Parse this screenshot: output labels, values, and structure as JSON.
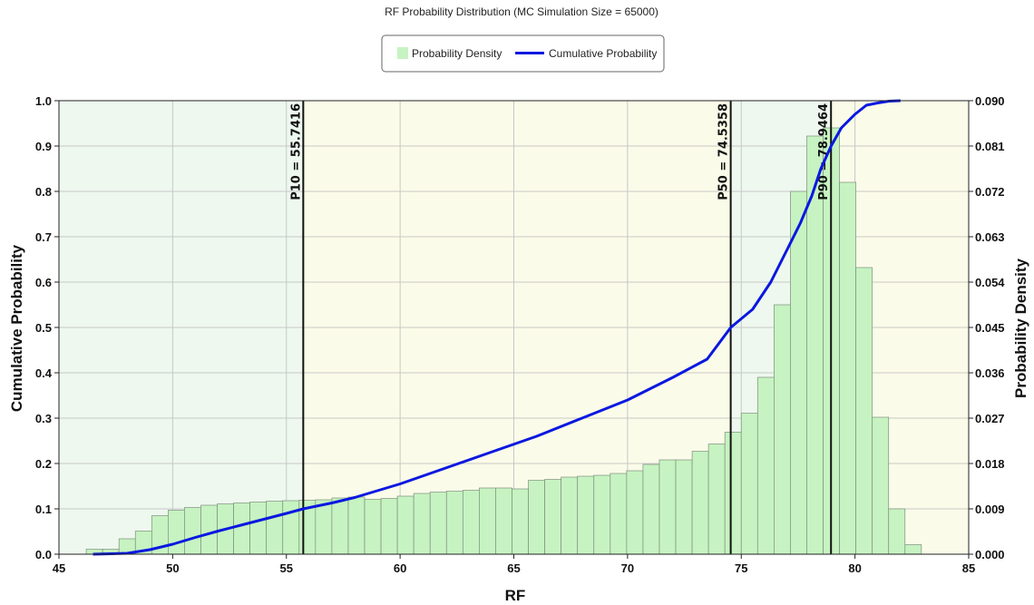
{
  "chart_data": {
    "type": "bar",
    "title": "RF Probability Distribution (MC Simulation Size = 65000)",
    "xlabel": "RF",
    "ylabel_left": "Cumulative Probability",
    "ylabel_right": "Probability Density",
    "xlim": [
      45,
      85
    ],
    "ylim_left": [
      0.0,
      1.0
    ],
    "ylim_right": [
      0.0,
      0.09
    ],
    "x_ticks": [
      "45",
      "50",
      "55",
      "60",
      "65",
      "70",
      "75",
      "80",
      "85"
    ],
    "y_left_ticks": [
      "0.0",
      "0.1",
      "0.2",
      "0.3",
      "0.4",
      "0.5",
      "0.6",
      "0.7",
      "0.8",
      "0.9",
      "1.0"
    ],
    "y_right_ticks": [
      "0.000",
      "0.009",
      "0.018",
      "0.027",
      "0.036",
      "0.045",
      "0.054",
      "0.063",
      "0.072",
      "0.081",
      "0.090"
    ],
    "grid": true,
    "legend": {
      "position": "top-center",
      "items": [
        {
          "label": "Probability Density",
          "color": "#c6f3c1",
          "kind": "bar"
        },
        {
          "label": "Cumulative Probability",
          "color": "#0a18e0",
          "kind": "line"
        }
      ]
    },
    "regions": [
      {
        "from": 45,
        "to": 55.7416,
        "color": "#eef8ee"
      },
      {
        "from": 55.7416,
        "to": 74.5358,
        "color": "#fbfbe9"
      },
      {
        "from": 74.5358,
        "to": 78.9464,
        "color": "#eef8ee"
      },
      {
        "from": 78.9464,
        "to": 85,
        "color": "#fbfbe9"
      }
    ],
    "histogram": {
      "series_name": "Probability Density",
      "bin_width": 0.72,
      "bin_start": 46.2,
      "values_left_scale": [
        0.011,
        0.011,
        0.034,
        0.051,
        0.085,
        0.097,
        0.103,
        0.108,
        0.111,
        0.113,
        0.115,
        0.117,
        0.118,
        0.119,
        0.12,
        0.124,
        0.126,
        0.121,
        0.123,
        0.128,
        0.134,
        0.137,
        0.139,
        0.141,
        0.146,
        0.146,
        0.144,
        0.163,
        0.165,
        0.17,
        0.172,
        0.174,
        0.178,
        0.184,
        0.198,
        0.208,
        0.208,
        0.227,
        0.243,
        0.269,
        0.311,
        0.39,
        0.55,
        0.8,
        0.922,
        0.94,
        0.82,
        0.632,
        0.302,
        0.1,
        0.021
      ]
    },
    "cumulative": {
      "series_name": "Cumulative Probability",
      "x": [
        46.5,
        48.0,
        49.0,
        50.0,
        51.0,
        52.0,
        53.0,
        54.0,
        55.0,
        55.74,
        57.0,
        58.0,
        60.0,
        62.0,
        64.0,
        66.0,
        68.0,
        70.0,
        72.0,
        73.5,
        74.54,
        75.5,
        76.3,
        77.0,
        77.6,
        78.1,
        78.5,
        78.95,
        79.4,
        80.0,
        80.5,
        81.0,
        81.5,
        82.0
      ],
      "y": [
        0.0,
        0.002,
        0.01,
        0.022,
        0.037,
        0.051,
        0.064,
        0.077,
        0.09,
        0.1,
        0.113,
        0.125,
        0.155,
        0.19,
        0.225,
        0.26,
        0.3,
        0.34,
        0.39,
        0.43,
        0.5,
        0.54,
        0.6,
        0.67,
        0.73,
        0.79,
        0.85,
        0.9,
        0.94,
        0.97,
        0.99,
        0.995,
        0.999,
        1.0
      ]
    },
    "percentile_lines": [
      {
        "x": 55.7416,
        "label": "P10 = 55.7416",
        "label_color": "#111111"
      },
      {
        "x": 74.5358,
        "label": "P50 = 74.5358",
        "label_color": "#111111"
      },
      {
        "x": 78.9464,
        "label": "P90 = 78.9464",
        "label_color": "#3d7d3d"
      }
    ],
    "colors": {
      "bar_fill": "#c6f3c1",
      "bar_stroke": "#7f8f7f",
      "line": "#0a18e0",
      "grid": "#c8c8c8",
      "axis": "#222222"
    }
  }
}
